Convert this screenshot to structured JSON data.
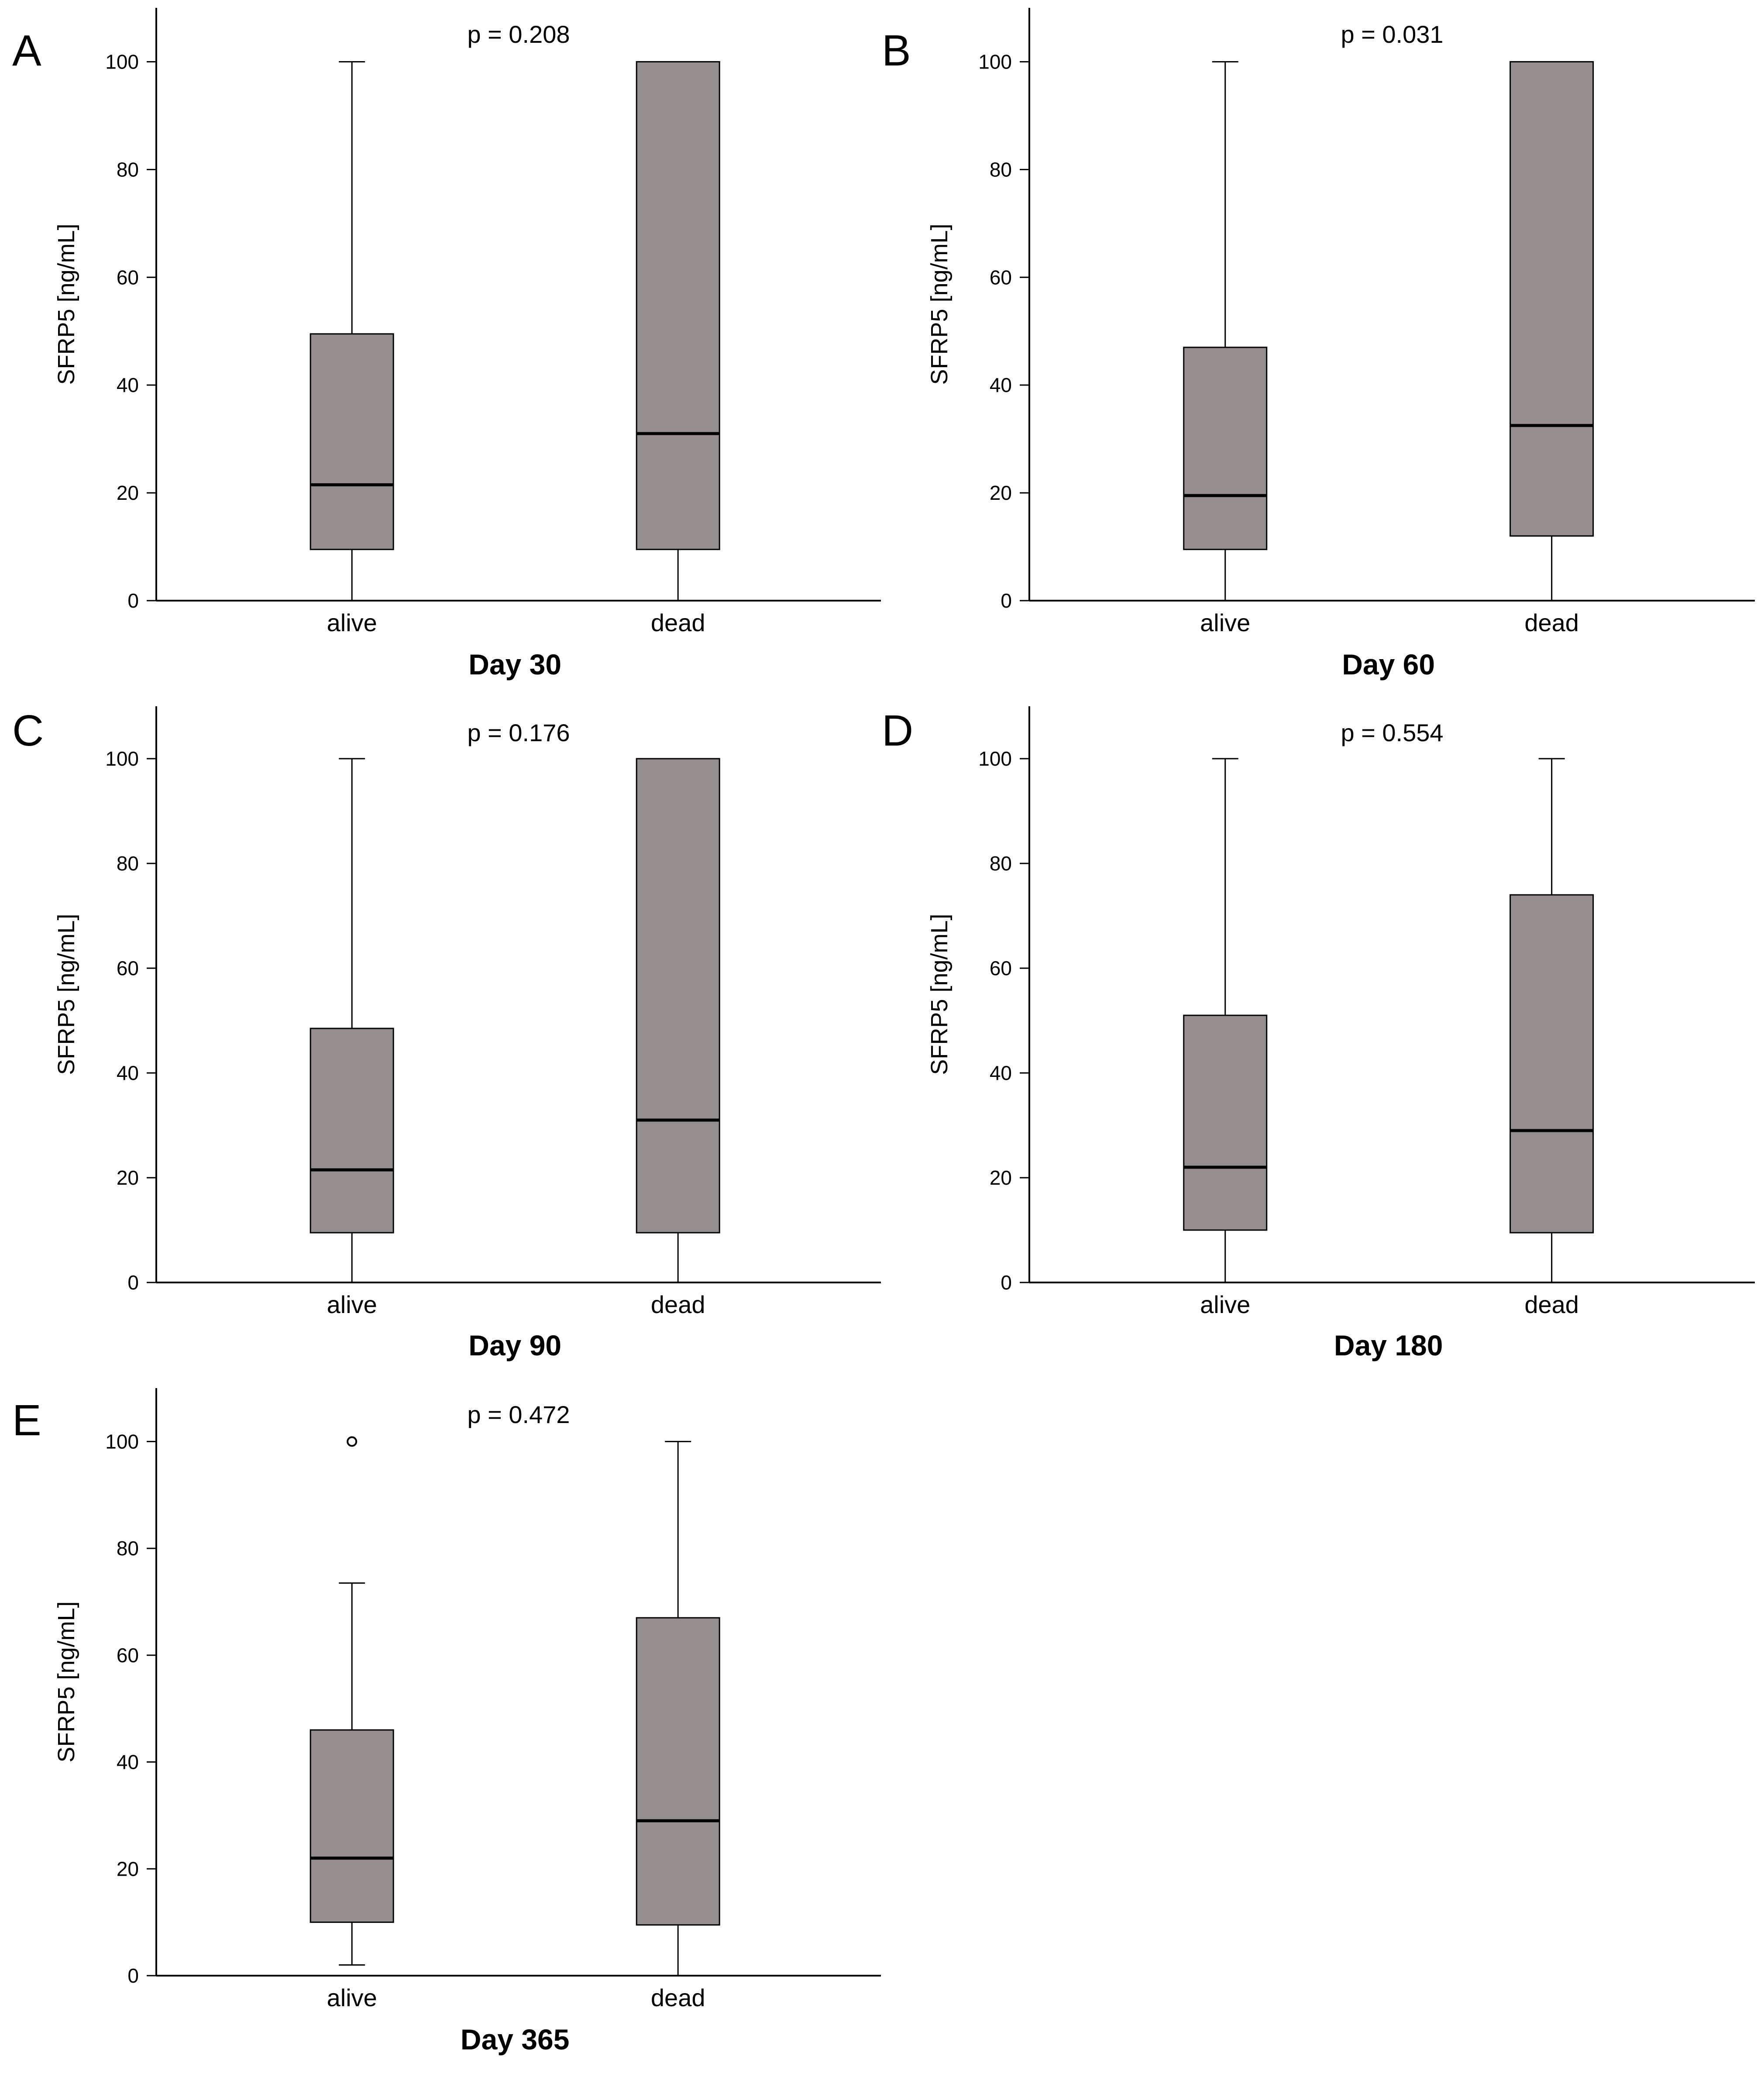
{
  "figure": {
    "box_fill": "#948f8e",
    "line_color": "#000000",
    "background": "#ffffff"
  },
  "chart_data": [
    {
      "type": "boxplot",
      "panel": "A",
      "title": "",
      "pvalue_label": "p = 0.208",
      "xlabel": "Day 30",
      "ylabel": "SFRP5 [ng/mL]",
      "ylim": [
        0,
        110
      ],
      "yticks": [
        0,
        20,
        40,
        60,
        80,
        100
      ],
      "categories": [
        "alive",
        "dead"
      ],
      "boxes": [
        {
          "category": "alive",
          "whisker_low": 0,
          "q1": 9.5,
          "median": 21.5,
          "q3": 49.5,
          "whisker_high": 100,
          "outliers": []
        },
        {
          "category": "dead",
          "whisker_low": 0,
          "q1": 9.5,
          "median": 31,
          "q3": 100,
          "whisker_high": 100,
          "outliers": []
        }
      ]
    },
    {
      "type": "boxplot",
      "panel": "B",
      "title": "",
      "pvalue_label": "p = 0.031",
      "xlabel": "Day 60",
      "ylabel": "SFRP5 [ng/mL]",
      "ylim": [
        0,
        110
      ],
      "yticks": [
        0,
        20,
        40,
        60,
        80,
        100
      ],
      "categories": [
        "alive",
        "dead"
      ],
      "boxes": [
        {
          "category": "alive",
          "whisker_low": 0,
          "q1": 9.5,
          "median": 19.5,
          "q3": 47,
          "whisker_high": 100,
          "outliers": []
        },
        {
          "category": "dead",
          "whisker_low": 0,
          "q1": 12,
          "median": 32.5,
          "q3": 100,
          "whisker_high": 100,
          "outliers": []
        }
      ]
    },
    {
      "type": "boxplot",
      "panel": "C",
      "title": "",
      "pvalue_label": "p = 0.176",
      "xlabel": "Day 90",
      "ylabel": "SFRP5 [ng/mL]",
      "ylim": [
        0,
        110
      ],
      "yticks": [
        0,
        20,
        40,
        60,
        80,
        100
      ],
      "categories": [
        "alive",
        "dead"
      ],
      "boxes": [
        {
          "category": "alive",
          "whisker_low": 0,
          "q1": 9.5,
          "median": 21.5,
          "q3": 48.5,
          "whisker_high": 100,
          "outliers": []
        },
        {
          "category": "dead",
          "whisker_low": 0,
          "q1": 9.5,
          "median": 31,
          "q3": 100,
          "whisker_high": 100,
          "outliers": []
        }
      ]
    },
    {
      "type": "boxplot",
      "panel": "D",
      "title": "",
      "pvalue_label": "p = 0.554",
      "xlabel": "Day 180",
      "ylabel": "SFRP5 [ng/mL]",
      "ylim": [
        0,
        110
      ],
      "yticks": [
        0,
        20,
        40,
        60,
        80,
        100
      ],
      "categories": [
        "alive",
        "dead"
      ],
      "boxes": [
        {
          "category": "alive",
          "whisker_low": 0,
          "q1": 10,
          "median": 22,
          "q3": 51,
          "whisker_high": 100,
          "outliers": []
        },
        {
          "category": "dead",
          "whisker_low": 0,
          "q1": 9.5,
          "median": 29,
          "q3": 74,
          "whisker_high": 100,
          "outliers": []
        }
      ]
    },
    {
      "type": "boxplot",
      "panel": "E",
      "title": "",
      "pvalue_label": "p = 0.472",
      "xlabel": "Day 365",
      "ylabel": "SFRP5 [ng/mL]",
      "ylim": [
        0,
        110
      ],
      "yticks": [
        0,
        20,
        40,
        60,
        80,
        100
      ],
      "categories": [
        "alive",
        "dead"
      ],
      "boxes": [
        {
          "category": "alive",
          "whisker_low": 2,
          "q1": 10,
          "median": 22,
          "q3": 46,
          "whisker_high": 73.5,
          "outliers": [
            100
          ]
        },
        {
          "category": "dead",
          "whisker_low": 0,
          "q1": 9.5,
          "median": 29,
          "q3": 67,
          "whisker_high": 100,
          "outliers": []
        }
      ]
    }
  ]
}
